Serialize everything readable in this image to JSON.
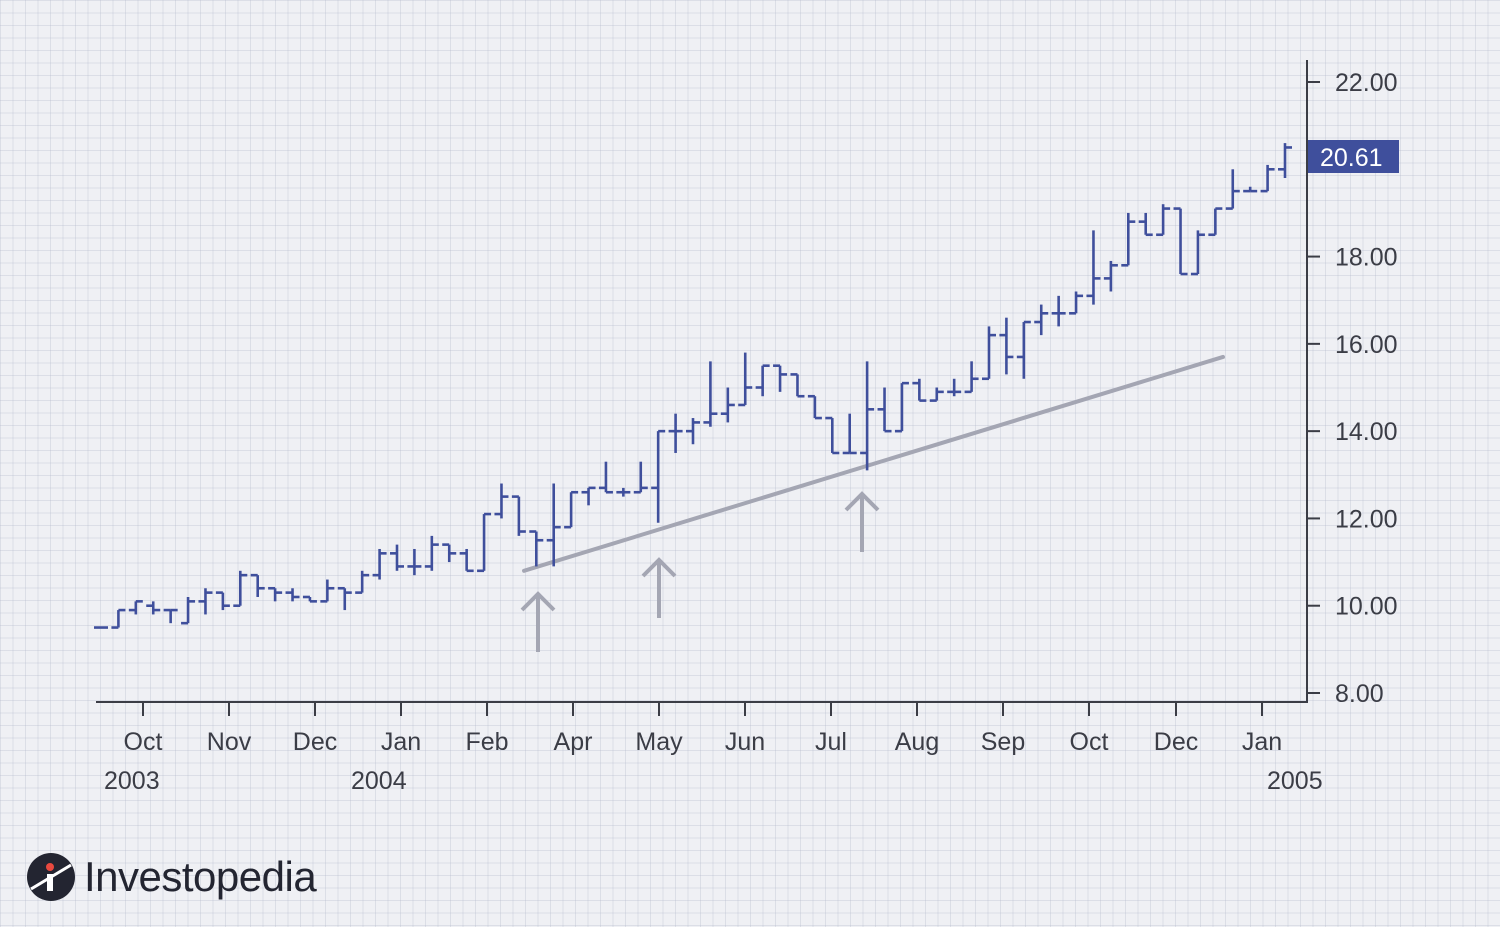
{
  "chart_data": {
    "type": "bar",
    "subtype": "ohlc",
    "title": "",
    "xlabel": "",
    "ylabel": "",
    "ylim": [
      8,
      22
    ],
    "y_ticks": [
      "22.00",
      "18.00",
      "16.00",
      "14.00",
      "12.00",
      "10.00",
      "8.00"
    ],
    "x_ticks": [
      "Oct",
      "Nov",
      "Dec",
      "Jan",
      "Feb",
      "Apr",
      "May",
      "Jun",
      "Jul",
      "Aug",
      "Sep",
      "Oct",
      "Dec",
      "Jan"
    ],
    "year_labels": [
      "2003",
      "2004",
      "2005"
    ],
    "last_price": "20.61",
    "grid": true,
    "series": [
      {
        "values": [
          [
            9.5,
            9.5,
            9.5,
            9.5
          ],
          [
            9.5,
            9.9,
            9.5,
            9.9
          ],
          [
            9.9,
            10.1,
            9.8,
            10.1
          ],
          [
            10.0,
            10.1,
            9.8,
            9.9
          ],
          [
            9.9,
            9.9,
            9.6,
            9.9
          ],
          [
            9.6,
            10.2,
            9.6,
            10.1
          ],
          [
            10.1,
            10.4,
            9.8,
            10.3
          ],
          [
            10.3,
            10.3,
            9.9,
            10.0
          ],
          [
            10.0,
            10.8,
            10.0,
            10.7
          ],
          [
            10.7,
            10.7,
            10.2,
            10.4
          ],
          [
            10.4,
            10.4,
            10.1,
            10.3
          ],
          [
            10.3,
            10.4,
            10.1,
            10.2
          ],
          [
            10.2,
            10.2,
            10.1,
            10.1
          ],
          [
            10.1,
            10.6,
            10.1,
            10.4
          ],
          [
            10.4,
            10.4,
            9.9,
            10.3
          ],
          [
            10.3,
            10.8,
            10.3,
            10.7
          ],
          [
            10.7,
            11.3,
            10.6,
            11.2
          ],
          [
            11.2,
            11.4,
            10.8,
            10.9
          ],
          [
            10.9,
            11.3,
            10.7,
            10.9
          ],
          [
            10.9,
            11.6,
            10.8,
            11.4
          ],
          [
            11.4,
            11.3,
            11.0,
            11.2
          ],
          [
            11.2,
            11.3,
            10.8,
            10.8
          ],
          [
            10.8,
            12.1,
            10.8,
            12.1
          ],
          [
            12.1,
            12.8,
            12.0,
            12.5
          ],
          [
            12.5,
            12.5,
            11.6,
            11.7
          ],
          [
            11.7,
            11.6,
            10.9,
            11.5
          ],
          [
            11.5,
            12.8,
            10.9,
            11.8
          ],
          [
            11.8,
            12.6,
            11.8,
            12.6
          ],
          [
            12.6,
            12.7,
            12.3,
            12.7
          ],
          [
            12.7,
            13.3,
            12.6,
            12.6
          ],
          [
            12.6,
            12.7,
            12.5,
            12.6
          ],
          [
            12.6,
            13.3,
            12.6,
            12.7
          ],
          [
            12.7,
            12.7,
            11.9,
            14.0
          ],
          [
            14.0,
            14.4,
            13.5,
            14.0
          ],
          [
            14.0,
            14.3,
            13.7,
            14.2
          ],
          [
            14.2,
            15.6,
            14.1,
            14.4
          ],
          [
            14.4,
            15.0,
            14.2,
            14.6
          ],
          [
            14.6,
            15.8,
            14.6,
            15.0
          ],
          [
            15.0,
            15.5,
            14.8,
            15.5
          ],
          [
            15.5,
            15.5,
            14.9,
            15.3
          ],
          [
            15.3,
            15.2,
            14.8,
            14.8
          ],
          [
            14.8,
            14.8,
            14.3,
            14.3
          ],
          [
            14.3,
            14.3,
            13.5,
            13.5
          ],
          [
            13.5,
            14.4,
            13.5,
            13.5
          ],
          [
            13.5,
            15.6,
            13.1,
            14.5
          ],
          [
            14.5,
            15.0,
            14.0,
            14.0
          ],
          [
            14.0,
            15.1,
            14.0,
            15.1
          ],
          [
            15.1,
            15.2,
            14.7,
            14.7
          ],
          [
            14.7,
            15.0,
            14.7,
            14.9
          ],
          [
            14.9,
            15.2,
            14.8,
            14.9
          ],
          [
            14.9,
            15.6,
            14.9,
            15.2
          ],
          [
            15.2,
            16.4,
            15.2,
            16.2
          ],
          [
            16.2,
            16.6,
            15.3,
            15.7
          ],
          [
            15.7,
            16.5,
            15.2,
            16.5
          ],
          [
            16.5,
            16.9,
            16.2,
            16.7
          ],
          [
            16.7,
            17.1,
            16.4,
            16.7
          ],
          [
            16.7,
            17.2,
            16.7,
            17.1
          ],
          [
            17.1,
            18.6,
            16.9,
            17.5
          ],
          [
            17.5,
            17.9,
            17.2,
            17.8
          ],
          [
            17.8,
            19.0,
            17.8,
            18.8
          ],
          [
            18.8,
            19.0,
            18.5,
            18.5
          ],
          [
            18.5,
            19.2,
            18.5,
            19.1
          ],
          [
            19.1,
            19.0,
            17.6,
            17.6
          ],
          [
            17.6,
            18.6,
            17.6,
            18.5
          ],
          [
            18.5,
            19.1,
            18.5,
            19.1
          ],
          [
            19.1,
            20.0,
            19.1,
            19.5
          ],
          [
            19.5,
            19.6,
            19.5,
            19.5
          ],
          [
            19.5,
            20.1,
            19.5,
            20.0
          ],
          [
            20.0,
            20.6,
            19.8,
            20.5
          ]
        ]
      }
    ],
    "trendline": {
      "start": [
        "2004-02-24",
        10.8
      ],
      "end": [
        "2004-12-15",
        15.7
      ]
    },
    "annotations": [
      "support-arrow",
      "support-arrow",
      "support-arrow"
    ]
  },
  "colors": {
    "bars": "#3f4f9c",
    "trendline": "#a4a6b3",
    "axis": "#3b3d46",
    "price_badge": "#3f4f9c"
  },
  "logo": {
    "text": "Investopedia",
    "icon": "investopedia-logo-icon"
  }
}
